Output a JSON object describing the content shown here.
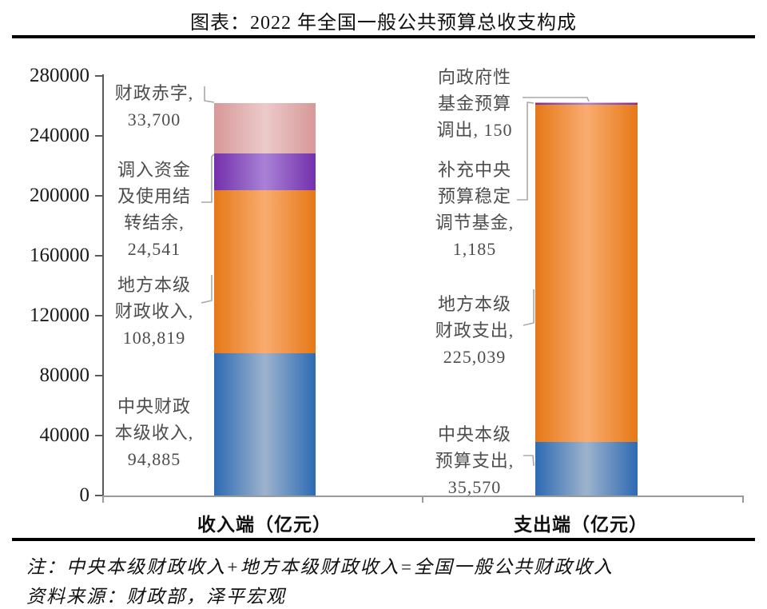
{
  "page": {
    "title": "图表：2022 年全国一般公共预算总收支构成"
  },
  "notes": {
    "note": "注：中央本级财政收入+地方本级财政收入=全国一般公共财政收入",
    "source": "资料来源：财政部，泽平宏观"
  },
  "colors": {
    "rule": "#000000",
    "axis": "#595959",
    "baseline": "#9a9a9a",
    "leader": "#a8a8a8",
    "blue_edge": "#2d6ab3",
    "blue_mid": "#9db3cc",
    "orange_edge": "#e67817",
    "orange_mid": "#f9ac70",
    "purple_edge": "#7330ab",
    "purple_mid": "#a981d6",
    "pink_edge": "#d79898",
    "pink_mid": "#eccaca"
  },
  "chart_data": {
    "type": "bar",
    "variant": "stacked-cylinder",
    "title": "图表：2022 年全国一般公共预算总收支构成",
    "unit": "亿元",
    "categories": [
      "收入端（亿元）",
      "支出端（亿元）"
    ],
    "ylim": [
      0,
      280000
    ],
    "ytick_interval": 40000,
    "yticks": [
      "0",
      "40000",
      "80000",
      "120000",
      "160000",
      "200000",
      "240000",
      "280000"
    ],
    "grid": false,
    "legend": "none — segments identified by direct callout labels with gray leader lines",
    "stacks": [
      {
        "category": "收入端（亿元）",
        "segments": [
          {
            "label": "中央财政本级收入",
            "value": 94885,
            "display": "94,885",
            "color": "blue"
          },
          {
            "label": "地方本级财政收入",
            "value": 108819,
            "display": "108,819",
            "color": "orange"
          },
          {
            "label": "调入资金及使用结转结余",
            "value": 24541,
            "display": "24,541",
            "color": "purple"
          },
          {
            "label": "财政赤字",
            "value": 33700,
            "display": "33,700",
            "color": "pink"
          }
        ]
      },
      {
        "category": "支出端（亿元）",
        "segments": [
          {
            "label": "中央本级预算支出",
            "value": 35570,
            "display": "35,570",
            "color": "blue"
          },
          {
            "label": "地方本级财政支出",
            "value": 225039,
            "display": "225,039",
            "color": "orange"
          },
          {
            "label": "补充中央预算稳定调节基金",
            "value": 1185,
            "display": "1,185",
            "color": "purple"
          },
          {
            "label": "向政府性基金预算调出",
            "value": 150,
            "display": "150",
            "color": "pink"
          }
        ]
      }
    ],
    "annotations": {
      "rev_deficit": {
        "text": "财政赤字,\n33,700"
      },
      "rev_transfer": {
        "text": "调入资金\n及使用结\n转结余,\n24,541"
      },
      "rev_local": {
        "text": "地方本级\n财政收入,\n108,819"
      },
      "rev_central": {
        "text": "中央财政\n本级收入,\n94,885"
      },
      "exp_fund": {
        "text": "向政府性\n基金预算\n调出, 150"
      },
      "exp_stabilize": {
        "text": "补充中央\n预算稳定\n调节基金,\n1,185"
      },
      "exp_local": {
        "text": "地方本级\n财政支出,\n225,039"
      },
      "exp_central": {
        "text": "中央本级\n预算支出,\n35,570"
      }
    }
  }
}
